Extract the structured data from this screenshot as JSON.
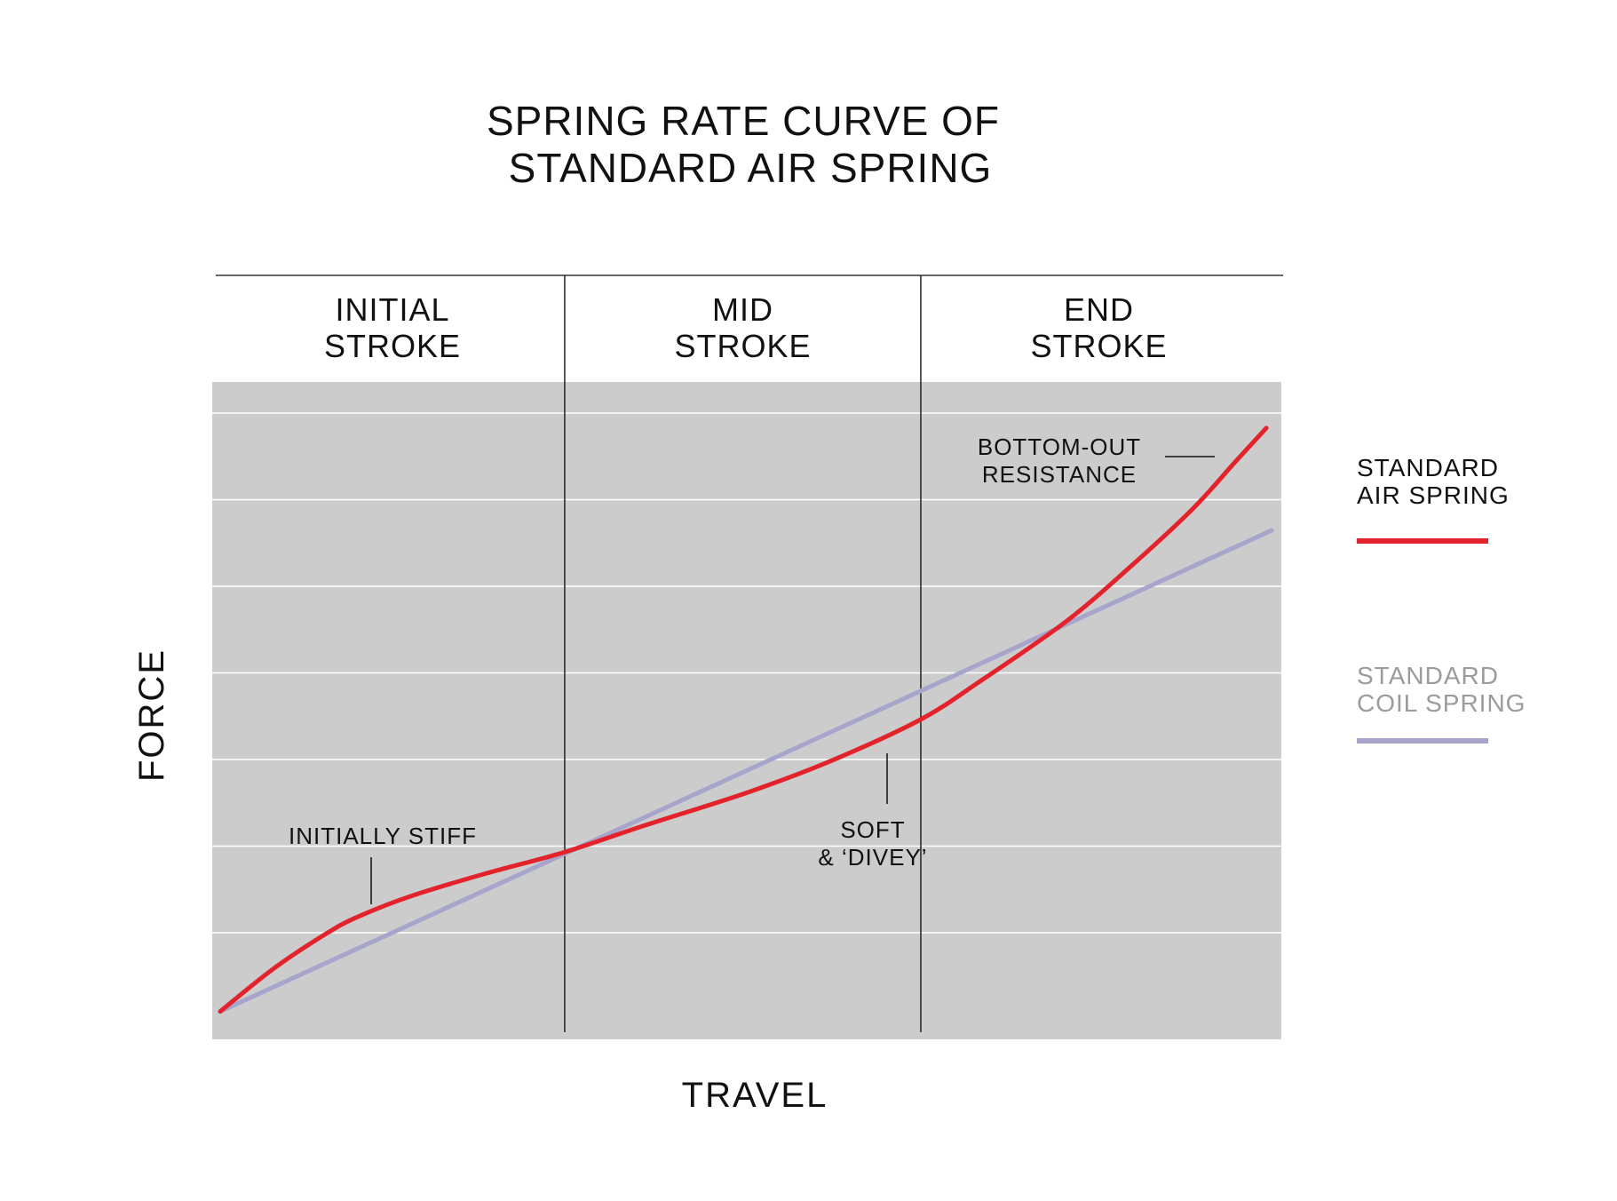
{
  "chart_data": {
    "type": "line",
    "title_lines": [
      "SPRING RATE CURVE OF",
      "STANDARD AIR SPRING"
    ],
    "xlabel": "TRAVEL",
    "ylabel": "FORCE",
    "xlim": [
      0,
      100
    ],
    "ylim": [
      0,
      100
    ],
    "grid": true,
    "legend_position": "right",
    "regions": [
      {
        "label_lines": [
          "INITIAL",
          "STROKE"
        ],
        "x_start": 0,
        "x_end": 32.6
      },
      {
        "label_lines": [
          "MID",
          "STROKE"
        ],
        "x_start": 32.6,
        "x_end": 66.3
      },
      {
        "label_lines": [
          "END",
          "STROKE"
        ],
        "x_start": 66.3,
        "x_end": 100
      }
    ],
    "series": [
      {
        "name_lines": [
          "STANDARD",
          "AIR SPRING"
        ],
        "color": "#e3232c",
        "x": [
          0,
          5,
          10,
          13,
          18,
          25,
          32.6,
          40,
          50,
          58,
          66.3,
          72,
          80,
          86,
          92,
          96,
          99
        ],
        "y": [
          0.5,
          7.5,
          13.3,
          16.1,
          19.5,
          23.2,
          26.8,
          31.1,
          36.7,
          42.0,
          48.7,
          55.1,
          64.8,
          73.7,
          83.4,
          91.1,
          96.8
        ]
      },
      {
        "name_lines": [
          "STANDARD",
          "COIL SPRING"
        ],
        "color": "#a7a5cb",
        "x": [
          0,
          99.5
        ],
        "y": [
          0.5,
          79.9
        ]
      }
    ],
    "annotations": [
      {
        "text_lines": [
          "INITIALLY STIFF"
        ]
      },
      {
        "text_lines": [
          "SOFT",
          "& ‘DIVEY’"
        ]
      },
      {
        "text_lines": [
          "BOTTOM-OUT",
          "RESISTANCE"
        ]
      }
    ]
  }
}
